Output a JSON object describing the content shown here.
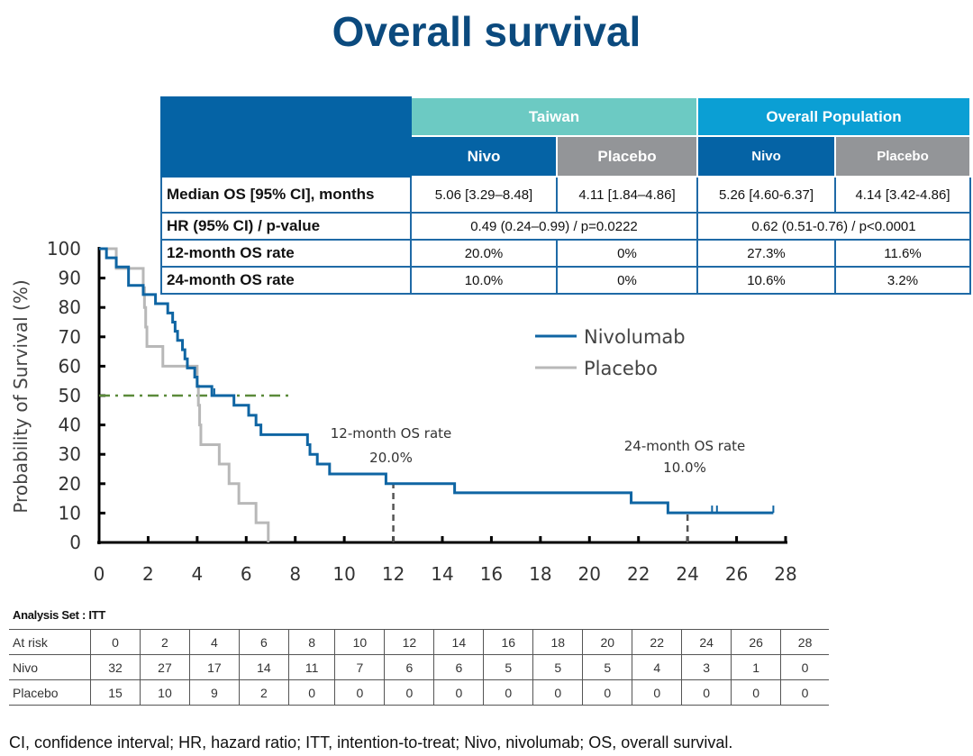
{
  "title": "Overall survival",
  "summary_table": {
    "groups": [
      "Taiwan",
      "Overall Population"
    ],
    "arms": [
      "Nivo",
      "Placebo",
      "Nivo",
      "Placebo"
    ],
    "rows": [
      {
        "label": "Median OS [95% CI], months",
        "cells": [
          "5.06 [3.29–8.48]",
          "4.11 [1.84–4.86]",
          "5.26 [4.60-6.37]",
          "4.14 [3.42-4.86]"
        ]
      },
      {
        "label": "HR (95% CI) / p-value",
        "cells": [
          "0.49 (0.24–0.99) / p=0.0222",
          "0.62 (0.51-0.76) / p<0.0001"
        ]
      },
      {
        "label": "12-month OS rate",
        "cells": [
          "20.0%",
          "0%",
          "27.3%",
          "11.6%"
        ]
      },
      {
        "label": "24-month OS rate",
        "cells": [
          "10.0%",
          "0%",
          "10.6%",
          "3.2%"
        ]
      }
    ],
    "colors": {
      "header_dark": "#0563a5",
      "taiwan": "#6ccac3",
      "overall": "#0b9fd4",
      "placebo": "#939598"
    }
  },
  "chart_data": {
    "type": "line",
    "title": "",
    "xlabel": "",
    "ylabel": "Probability of Survival (%)",
    "xlim": [
      0,
      28
    ],
    "ylim": [
      0,
      100
    ],
    "xticks": [
      0,
      2,
      4,
      6,
      8,
      10,
      12,
      14,
      16,
      18,
      20,
      22,
      24,
      26,
      28
    ],
    "yticks": [
      0,
      10,
      20,
      30,
      40,
      50,
      60,
      70,
      80,
      90,
      100
    ],
    "legend_position": "right",
    "series": [
      {
        "name": "Nivolumab",
        "color": "#0f65a3",
        "step": true,
        "points": [
          [
            0,
            100
          ],
          [
            0.3,
            96.9
          ],
          [
            0.7,
            93.8
          ],
          [
            1.2,
            87.5
          ],
          [
            1.8,
            84.4
          ],
          [
            2.3,
            81.3
          ],
          [
            2.8,
            78.1
          ],
          [
            3.0,
            75
          ],
          [
            3.1,
            71.9
          ],
          [
            3.2,
            68.8
          ],
          [
            3.4,
            65.6
          ],
          [
            3.5,
            62.5
          ],
          [
            3.6,
            59.4
          ],
          [
            3.9,
            56.3
          ],
          [
            4.0,
            53.1
          ],
          [
            4.6,
            50
          ],
          [
            5.5,
            46.7
          ],
          [
            6.1,
            43.3
          ],
          [
            6.4,
            40
          ],
          [
            6.6,
            36.7
          ],
          [
            8.5,
            33.3
          ],
          [
            8.6,
            30
          ],
          [
            8.9,
            26.7
          ],
          [
            9.4,
            23.3
          ],
          [
            11.7,
            20
          ],
          [
            14.5,
            16.9
          ],
          [
            21.7,
            13.5
          ],
          [
            23.2,
            10.1
          ],
          [
            27.5,
            10.1
          ]
        ],
        "censored": [
          [
            4.7,
            50
          ],
          [
            25.0,
            10.1
          ],
          [
            25.2,
            10.1
          ],
          [
            27.5,
            10.1
          ]
        ]
      },
      {
        "name": "Placebo",
        "color": "#b8b8b8",
        "step": true,
        "points": [
          [
            0,
            100
          ],
          [
            0.7,
            93.3
          ],
          [
            1.8,
            86.7
          ],
          [
            1.85,
            80
          ],
          [
            1.9,
            73.3
          ],
          [
            1.95,
            66.7
          ],
          [
            2.6,
            60
          ],
          [
            4.0,
            53.3
          ],
          [
            4.05,
            46.7
          ],
          [
            4.1,
            40
          ],
          [
            4.15,
            33.3
          ],
          [
            4.9,
            26.7
          ],
          [
            5.3,
            20
          ],
          [
            5.7,
            13.3
          ],
          [
            6.4,
            6.7
          ],
          [
            6.9,
            0
          ]
        ],
        "censored": []
      }
    ],
    "reference_lines": [
      {
        "type": "horizontal",
        "y": 50,
        "x_range": [
          0,
          7.8
        ],
        "style": "dash-dot",
        "color": "#5b8a3a"
      },
      {
        "type": "vertical",
        "x": 12,
        "y_range": [
          0,
          20
        ],
        "style": "dashed",
        "color": "#555555"
      },
      {
        "type": "vertical",
        "x": 24,
        "y_range": [
          0,
          10
        ],
        "style": "dashed",
        "color": "#555555"
      }
    ],
    "annotations": [
      {
        "line1": "12-month OS rate",
        "line2": "20.0%"
      },
      {
        "line1": "24-month OS rate",
        "line2": "10.0%"
      }
    ]
  },
  "at_risk": {
    "title": "Analysis Set : ITT",
    "header": [
      "At risk",
      "0",
      "2",
      "4",
      "6",
      "8",
      "10",
      "12",
      "14",
      "16",
      "18",
      "20",
      "22",
      "24",
      "26",
      "28"
    ],
    "rows": [
      [
        "Nivo",
        "32",
        "27",
        "17",
        "14",
        "11",
        "7",
        "6",
        "6",
        "5",
        "5",
        "5",
        "4",
        "3",
        "1",
        "0"
      ],
      [
        "Placebo",
        "15",
        "10",
        "9",
        "2",
        "0",
        "0",
        "0",
        "0",
        "0",
        "0",
        "0",
        "0",
        "0",
        "0",
        "0"
      ]
    ]
  },
  "footnote": "CI, confidence interval; HR, hazard ratio; ITT, intention-to-treat; Nivo, nivolumab; OS, overall survival."
}
